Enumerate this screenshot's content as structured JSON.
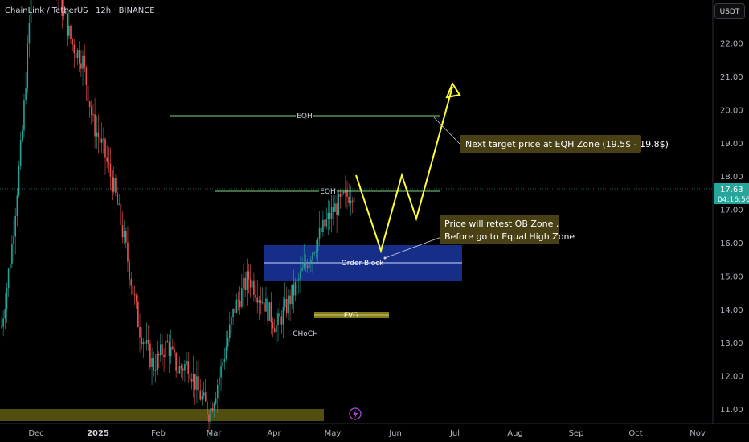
{
  "header": {
    "title": "ChainLink / TetherUS · 12h · BINANCE",
    "currency": "USDT"
  },
  "colors": {
    "background": "#000000",
    "up": "#26a69a",
    "down": "#ef5350",
    "ob_fill": "#1c3aa9",
    "fvg_fill": "#8f8a1c",
    "eqh_line": "#7fd77f",
    "path_line": "#ffff33",
    "callout_bg": "#4a4016",
    "price_badge": "#26a69a"
  },
  "price_axis": {
    "ticks": [
      "22.00",
      "21.00",
      "20.00",
      "19.00",
      "18.00",
      "17.00",
      "16.00",
      "15.00",
      "14.00",
      "13.00",
      "12.00",
      "11.00"
    ],
    "current_price": "17.63",
    "countdown": "04:16:56"
  },
  "time_axis": {
    "labels": [
      "Dec",
      "2025",
      "Feb",
      "Mar",
      "Apr",
      "May",
      "Jun",
      "Jul",
      "Aug",
      "Sep",
      "Oct",
      "Nov"
    ],
    "bold_index": 1
  },
  "annotations": {
    "eqh_upper": "EQH",
    "eqh_lower": "EQH",
    "order_block": "Order Block",
    "fvg": "FVG",
    "choch": "CHoCH"
  },
  "callouts": {
    "target": "Next target price at EQH Zone (19.5$ - 19.8$)",
    "retest_line1": "Price will retest OB Zone ,",
    "retest_line2": "Before go to Equal High Zone"
  },
  "icons": {
    "alert": "lightning-icon"
  },
  "chart_data": {
    "type": "candlestick",
    "symbol": "ChainLink / TetherUS",
    "interval": "12h",
    "exchange": "BINANCE",
    "ylim": [
      10.7,
      23.3
    ],
    "last_price": 17.63,
    "levels": {
      "eqh_upper": 19.85,
      "eqh_lower": 17.55,
      "order_block": [
        14.85,
        15.95
      ],
      "order_block_mid": 15.4,
      "fvg": [
        13.75,
        13.95
      ]
    },
    "projected_path": [
      17.8,
      15.8,
      17.55,
      16.75,
      20.6
    ],
    "series_shape": [
      [
        0,
        13.5
      ],
      [
        0.03,
        16.0
      ],
      [
        0.06,
        19.5
      ],
      [
        0.09,
        24.5
      ],
      [
        0.12,
        25.5
      ],
      [
        0.16,
        23.5
      ],
      [
        0.2,
        22.0
      ],
      [
        0.23,
        21.5
      ],
      [
        0.26,
        19.6
      ],
      [
        0.29,
        18.8
      ],
      [
        0.32,
        17.6
      ],
      [
        0.35,
        16.0
      ],
      [
        0.39,
        13.5
      ],
      [
        0.43,
        12.3
      ],
      [
        0.47,
        13.0
      ],
      [
        0.5,
        12.2
      ],
      [
        0.53,
        12.4
      ],
      [
        0.56,
        11.5
      ],
      [
        0.59,
        10.9
      ],
      [
        0.62,
        12.1
      ],
      [
        0.66,
        14.0
      ],
      [
        0.7,
        15.0
      ],
      [
        0.74,
        14.3
      ],
      [
        0.78,
        13.5
      ],
      [
        0.83,
        14.6
      ],
      [
        0.89,
        16.0
      ],
      [
        0.94,
        17.0
      ],
      [
        1.0,
        17.63
      ]
    ]
  }
}
